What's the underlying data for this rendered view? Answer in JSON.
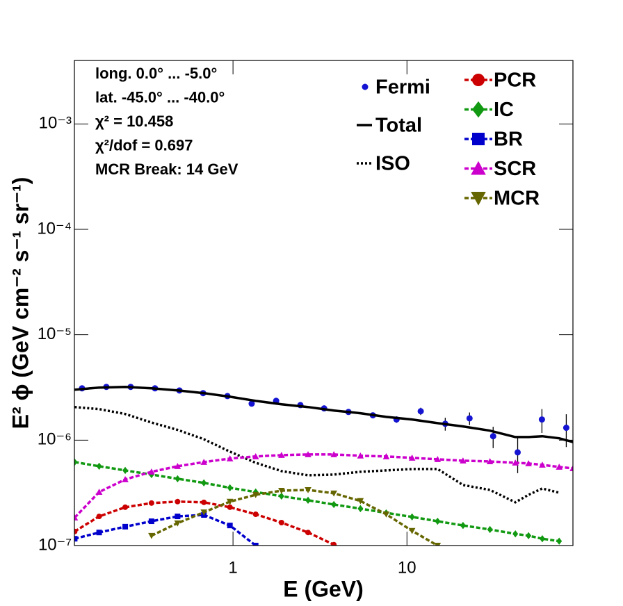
{
  "chart_data": {
    "type": "line",
    "xlabel": "E (GeV)",
    "ylabel": "E² ϕ (GeV cm⁻² s⁻¹ sr⁻¹)",
    "xscale": "log",
    "yscale": "log",
    "xlim": [
      0.1225,
      90
    ],
    "ylim": [
      1e-07,
      0.004
    ],
    "xticks": [
      1,
      10
    ],
    "yticks": [
      {
        "value": 1e-07,
        "label": "10⁻⁷"
      },
      {
        "value": 1e-06,
        "label": "10⁻⁶"
      },
      {
        "value": 1e-05,
        "label": "10⁻⁵"
      },
      {
        "value": 0.0001,
        "label": "10⁻⁴"
      },
      {
        "value": 0.001,
        "label": "10⁻³"
      }
    ],
    "annotations": [
      "long. 0.0° ... -5.0°",
      "lat. -45.0° ... -40.0°",
      "χ² = 10.458",
      "χ²/dof = 0.697",
      "MCR Break: 14 GeV"
    ],
    "x": [
      0.123,
      0.17,
      0.24,
      0.34,
      0.48,
      0.68,
      0.96,
      1.35,
      1.9,
      2.7,
      3.8,
      5.4,
      7.6,
      10.7,
      15,
      21,
      30,
      42,
      50,
      60,
      75,
      90
    ],
    "series": [
      {
        "name": "Fermi",
        "color": "#1414d2",
        "style": "points",
        "x": [
          0.1355,
          0.187,
          0.258,
          0.356,
          0.492,
          0.673,
          0.929,
          1.28,
          1.77,
          2.44,
          3.34,
          4.61,
          6.37,
          8.71,
          12.0,
          16.6,
          22.9,
          31.3,
          43.3,
          59.7,
          82.4
        ],
        "values": [
          3.1e-06,
          3.2e-06,
          3.2e-06,
          3.1e-06,
          2.96e-06,
          2.79e-06,
          2.62e-06,
          2.22e-06,
          2.36e-06,
          2.15e-06,
          2e-06,
          1.85e-06,
          1.72e-06,
          1.57e-06,
          1.88e-06,
          1.43e-06,
          1.61e-06,
          1.09e-06,
          7.66e-07,
          1.57e-06,
          1.31e-06
        ],
        "errors": [
          4e-08,
          4e-08,
          4e-08,
          4e-08,
          4e-08,
          4e-08,
          4e-08,
          4e-08,
          5e-08,
          5e-08,
          6e-08,
          7e-08,
          9e-08,
          1.1e-07,
          1.5e-07,
          2e-07,
          2.2e-07,
          2.5e-07,
          2.8e-07,
          4e-07,
          4.5e-07
        ]
      },
      {
        "name": "Total",
        "color": "#000000",
        "style": "line",
        "dash": "solid",
        "values": [
          3.01e-06,
          3.15e-06,
          3.2e-06,
          3.1e-06,
          2.96e-06,
          2.79e-06,
          2.58e-06,
          2.36e-06,
          2.19e-06,
          2.06e-06,
          1.91e-06,
          1.8e-06,
          1.66e-06,
          1.57e-06,
          1.45e-06,
          1.35e-06,
          1.23e-06,
          1.07e-06,
          1.07e-06,
          1.09e-06,
          1.04e-06,
          9.6e-07
        ]
      },
      {
        "name": "ISO",
        "color": "#000000",
        "style": "line",
        "dash": "dotted",
        "values": [
          2.06e-06,
          1.97e-06,
          1.77e-06,
          1.47e-06,
          1.25e-06,
          1.02e-06,
          7.78e-07,
          6.1e-07,
          5.08e-07,
          4.64e-07,
          4.71e-07,
          5.01e-07,
          5.16e-07,
          5.32e-07,
          5.32e-07,
          3.75e-07,
          3.37e-07,
          2.57e-07,
          3.03e-07,
          3.48e-07,
          3.17e-07,
          null
        ]
      },
      {
        "name": "PCR",
        "color": "#cc0000",
        "style": "line",
        "dash": "dashed",
        "marker": "circle",
        "values": [
          1.36e-07,
          1.89e-07,
          2.31e-07,
          2.53e-07,
          2.61e-07,
          2.57e-07,
          2.31e-07,
          1.98e-07,
          1.65e-07,
          1.33e-07,
          1.02e-07,
          null,
          null,
          null,
          null,
          null,
          null,
          null,
          null,
          null,
          null,
          null
        ]
      },
      {
        "name": "IC",
        "color": "#119911",
        "style": "line",
        "dash": "dashed",
        "marker": "diamond",
        "values": [
          6.19e-07,
          5.65e-07,
          5.16e-07,
          4.71e-07,
          4.3e-07,
          3.93e-07,
          3.53e-07,
          3.22e-07,
          2.94e-07,
          2.69e-07,
          2.45e-07,
          2.24e-07,
          2.04e-07,
          1.87e-07,
          1.7e-07,
          1.55e-07,
          1.42e-07,
          1.29e-07,
          1.24e-07,
          1.16e-07,
          1.1e-07,
          null
        ]
      },
      {
        "name": "BR",
        "color": "#0000cc",
        "style": "line",
        "dash": "dashed",
        "marker": "square",
        "values": [
          1.16e-07,
          1.33e-07,
          1.51e-07,
          1.7e-07,
          1.89e-07,
          1.95e-07,
          1.55e-07,
          1e-07,
          null,
          null,
          null,
          null,
          null,
          null,
          null,
          null,
          null,
          null,
          null,
          null,
          null,
          null
        ]
      },
      {
        "name": "SCR",
        "color": "#cc00cc",
        "style": "line",
        "dash": "dashed",
        "marker": "triangle",
        "values": [
          1.84e-07,
          3.22e-07,
          4.24e-07,
          5.01e-07,
          5.65e-07,
          6.19e-07,
          6.68e-07,
          7e-07,
          7.21e-07,
          7.32e-07,
          7.32e-07,
          7.11e-07,
          7e-07,
          6.79e-07,
          6.58e-07,
          6.38e-07,
          6.28e-07,
          6.1e-07,
          6.01e-07,
          5.83e-07,
          5.57e-07,
          5.4e-07
        ]
      },
      {
        "name": "MCR",
        "color": "#666600",
        "style": "line",
        "dash": "dashed",
        "marker": "triangle-down",
        "values": [
          null,
          null,
          null,
          1.24e-07,
          1.63e-07,
          2.07e-07,
          2.61e-07,
          3.03e-07,
          3.32e-07,
          3.37e-07,
          3.13e-07,
          2.65e-07,
          1.98e-07,
          1.38e-07,
          1e-07,
          null,
          null,
          null,
          null,
          null,
          null,
          null
        ]
      }
    ]
  }
}
